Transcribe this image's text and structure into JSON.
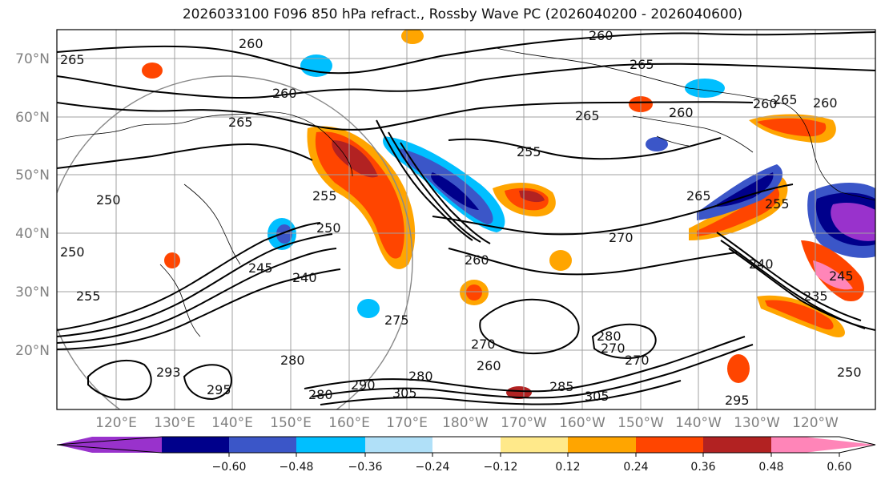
{
  "title": "2026033100 F096 850 hPa refract., Rossby Wave PC (2026040200 - 2026040600)",
  "lat_labels": [
    "70°N",
    "60°N",
    "50°N",
    "40°N",
    "30°N",
    "20°N"
  ],
  "lon_labels": [
    "120°E",
    "130°E",
    "140°E",
    "150°E",
    "160°E",
    "170°E",
    "180°W",
    "170°W",
    "160°W",
    "150°W",
    "140°W",
    "130°W",
    "120°W"
  ],
  "contour_labels": [
    "260",
    "265",
    "265",
    "260",
    "260",
    "265",
    "260",
    "260",
    "265",
    "260",
    "265",
    "255",
    "265",
    "255",
    "250",
    "250",
    "240",
    "245",
    "270",
    "260",
    "270",
    "255",
    "280",
    "290",
    "305",
    "280",
    "285",
    "305",
    "270",
    "275",
    "260",
    "270",
    "280",
    "235",
    "245",
    "240",
    "250",
    "255",
    "280",
    "293",
    "295",
    "250",
    "295"
  ],
  "colorbar": {
    "ticks": [
      "−0.60",
      "−0.48",
      "−0.36",
      "−0.24",
      "−0.12",
      "0.12",
      "0.24",
      "0.36",
      "0.48",
      "0.60"
    ],
    "colors": [
      "#9932cc",
      "#00008b",
      "#3b56c8",
      "#00bfff",
      "#b0e0f8",
      "#ffffff",
      "#ffe98a",
      "#ffa500",
      "#ff4500",
      "#b22222",
      "#ff85b8"
    ]
  },
  "colors": {
    "negative_strong": "#00008b",
    "negative_mid": "#3b56c8",
    "negative_light": "#00bfff",
    "positive_light": "#ffa500",
    "positive_mid": "#ff4500",
    "positive_strong": "#b22222",
    "positive_extreme": "#ff85b8",
    "negative_extreme": "#9932cc",
    "contour": "#000000",
    "grid": "#a0a0a0"
  }
}
